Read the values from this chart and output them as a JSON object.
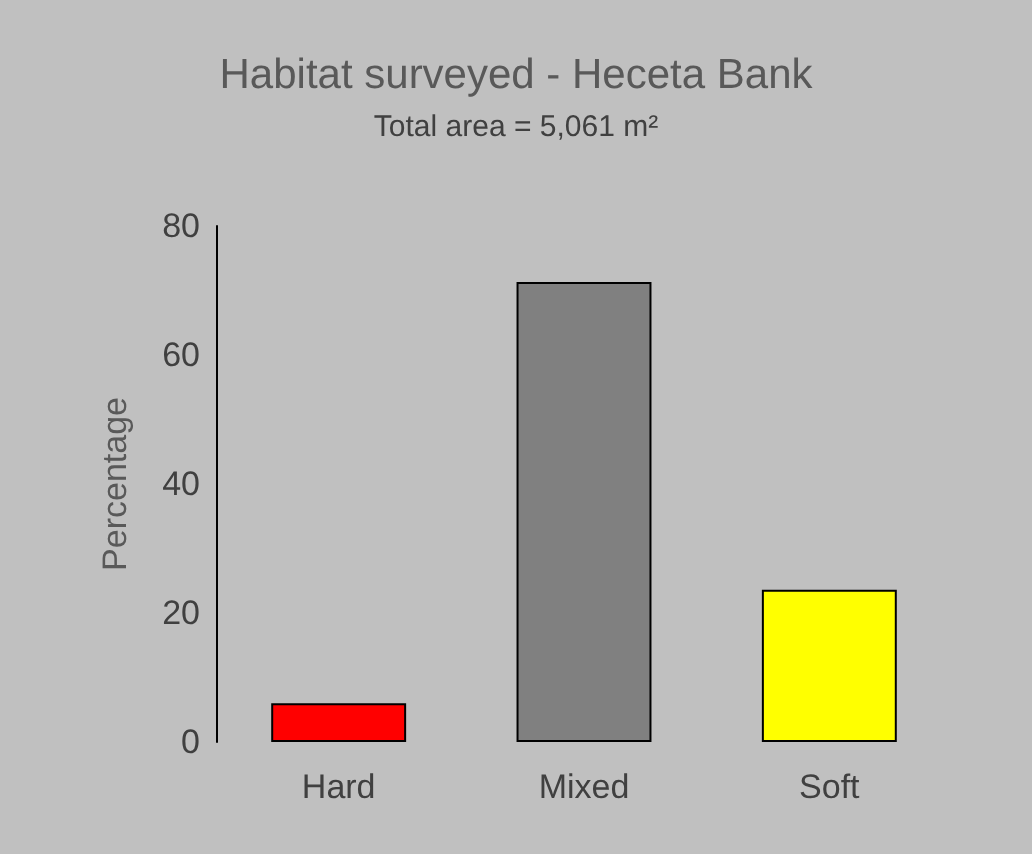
{
  "chart_data": {
    "type": "bar",
    "title": "Habitat surveyed - Heceta Bank",
    "subtitle": "Total area = 5,061 m²",
    "ylabel": "Percentage",
    "categories": [
      "Hard",
      "Mixed",
      "Soft"
    ],
    "values": [
      6,
      71.3,
      23.6
    ],
    "colors": [
      "#ff0000",
      "#808080",
      "#ffff00"
    ],
    "ylim": [
      0,
      80
    ],
    "yticks": [
      0,
      20,
      40,
      60,
      80
    ],
    "grid": false
  }
}
